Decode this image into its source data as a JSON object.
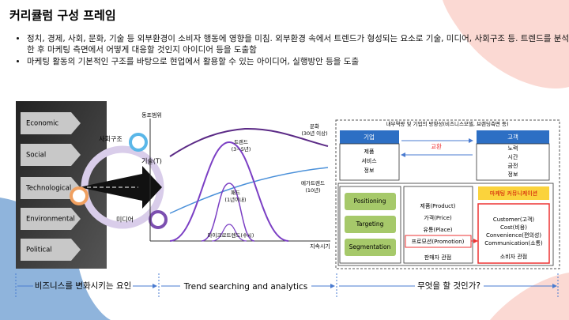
{
  "title": "커리큘럼 구성 프레임",
  "bullets": [
    "정치, 경제, 사회, 문화, 기술 등 외부환경이 소비자 행동에 영향을 미침. 외부환경 속에서 트렌드가 형성되는 요소로 기술, 미디어, 사회구조 등. 트렌드를 분석한 후 마케팅 측면에서 어떻게 대응할 것인지 아이디어 등을 도출함",
    "마케팅 활동의 기본적인 구조를 바탕으로 현업에서 활용할 수 있는 아이디어, 실행방안 등을 도출"
  ],
  "factors": {
    "items": [
      "Economic",
      "Social",
      "Technological",
      "Environmental",
      "Political"
    ],
    "circles": [
      "사회구조",
      "기술(T)",
      "미디어"
    ]
  },
  "trend_chart": {
    "y_label": "동조범위",
    "x_label": "지속시기",
    "labels": {
      "trend": [
        "트렌드",
        "(3~5년)"
      ],
      "culture": [
        "문화",
        "(30년 이상)"
      ],
      "mega": [
        "메가트렌드",
        "(10년)"
      ],
      "fad": [
        "패드",
        "(1년이내)"
      ],
      "micro": [
        "마이크로트렌드(수시)"
      ]
    }
  },
  "marketing": {
    "header": "내부역량 및 기업의 방향성(비즈니스모델, 브랜딩측면 등)",
    "company": {
      "title": "기업",
      "items": [
        "제품",
        "서비스",
        "정보"
      ]
    },
    "exchange": "교환",
    "customer": {
      "title": "고객",
      "items": [
        "노력",
        "시간",
        "금전",
        "정보"
      ]
    },
    "stp": [
      "Positioning",
      "Targeting",
      "Segmentation"
    ],
    "four_p": {
      "items": [
        "제품(Product)",
        "가격(Price)",
        "유통(Place)",
        "프로모션(Promotion)"
      ],
      "caption": "판매자 관점"
    },
    "four_c": {
      "title": "마케팅 커뮤니케이션",
      "items": [
        "Customer(고객)",
        "Cost(비용)",
        "Convenience(편의성)",
        "Communication(소통)"
      ],
      "caption": "소비자 관점"
    }
  },
  "footer": [
    "비즈니스를 변화시키는 요인",
    "Trend searching and analytics",
    "무엇을 할 것인가?"
  ]
}
